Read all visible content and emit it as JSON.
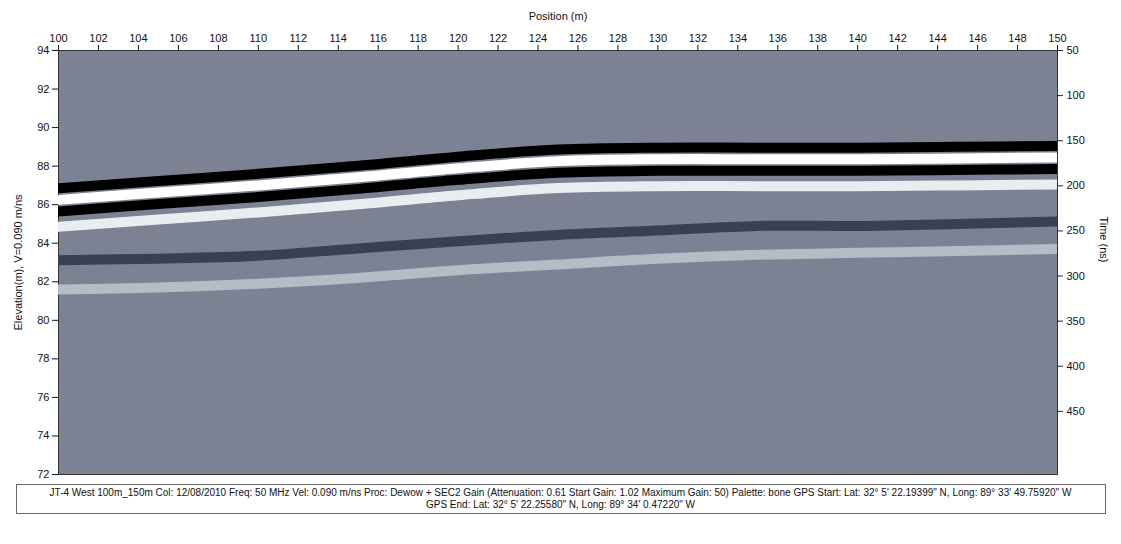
{
  "chart_data": {
    "type": "line",
    "xlabel": "Position (m)",
    "ylabel": "Elevation(m), V=0.090 m/ns",
    "y2label": "Time (ns)",
    "caption": [
      "JT-4 West 100m_150m  Col: 12/08/2010 Freq: 50 MHz Vel: 0.090 m/ns Proc: Dewow + SEC2 Gain (Attenuation: 0.61 Start Gain: 1.02 Maximum Gain: 50) Palette: bone GPS Start: Lat: 32° 5' 22.19399\" N, Long: 89° 33' 49.75920\" W",
      "GPS End: Lat: 32° 5' 22.25580\" N, Long: 89° 34' 0.47220\" W"
    ],
    "x": [
      100,
      105,
      110,
      115,
      120,
      125,
      130,
      135,
      140,
      145,
      150
    ],
    "series": [
      {
        "color": "#b4bcc4",
        "values": [
          81.6,
          81.7,
          81.9,
          82.2,
          82.6,
          82.9,
          83.2,
          83.4,
          83.5,
          83.6,
          83.7
        ]
      },
      {
        "color": "#3a3f52",
        "values": [
          83.12,
          83.2,
          83.35,
          83.73,
          84.1,
          84.43,
          84.66,
          84.9,
          84.9,
          85.0,
          85.13
        ]
      },
      {
        "color": "#e8eef0",
        "values": [
          84.85,
          85.23,
          85.6,
          86.02,
          86.49,
          86.86,
          86.96,
          86.96,
          86.96,
          87.0,
          87.05
        ]
      },
      {
        "color": "#000000",
        "values": [
          85.65,
          86.03,
          86.4,
          86.82,
          87.29,
          87.66,
          87.76,
          87.76,
          87.76,
          87.8,
          87.85
        ]
      },
      {
        "color": "#ffffff",
        "values": [
          86.25,
          86.63,
          87.0,
          87.42,
          87.89,
          88.26,
          88.36,
          88.36,
          88.36,
          88.4,
          88.45
        ]
      },
      {
        "color": "#000000",
        "values": [
          86.85,
          87.23,
          87.6,
          88.02,
          88.49,
          88.86,
          88.96,
          88.96,
          88.96,
          89.0,
          89.05
        ]
      }
    ],
    "xlim": [
      100,
      150
    ],
    "xticks": [
      100,
      102,
      104,
      106,
      108,
      110,
      112,
      114,
      116,
      118,
      120,
      122,
      124,
      126,
      128,
      130,
      132,
      134,
      136,
      138,
      140,
      142,
      144,
      146,
      148,
      150
    ],
    "ylim": [
      72,
      94
    ],
    "yticks": [
      72,
      74,
      76,
      78,
      80,
      82,
      84,
      86,
      88,
      90,
      92,
      94
    ],
    "y2lim": [
      50,
      520
    ],
    "y2ticks": [
      50,
      100,
      150,
      200,
      250,
      300,
      350,
      400,
      450
    ],
    "grid": false
  }
}
